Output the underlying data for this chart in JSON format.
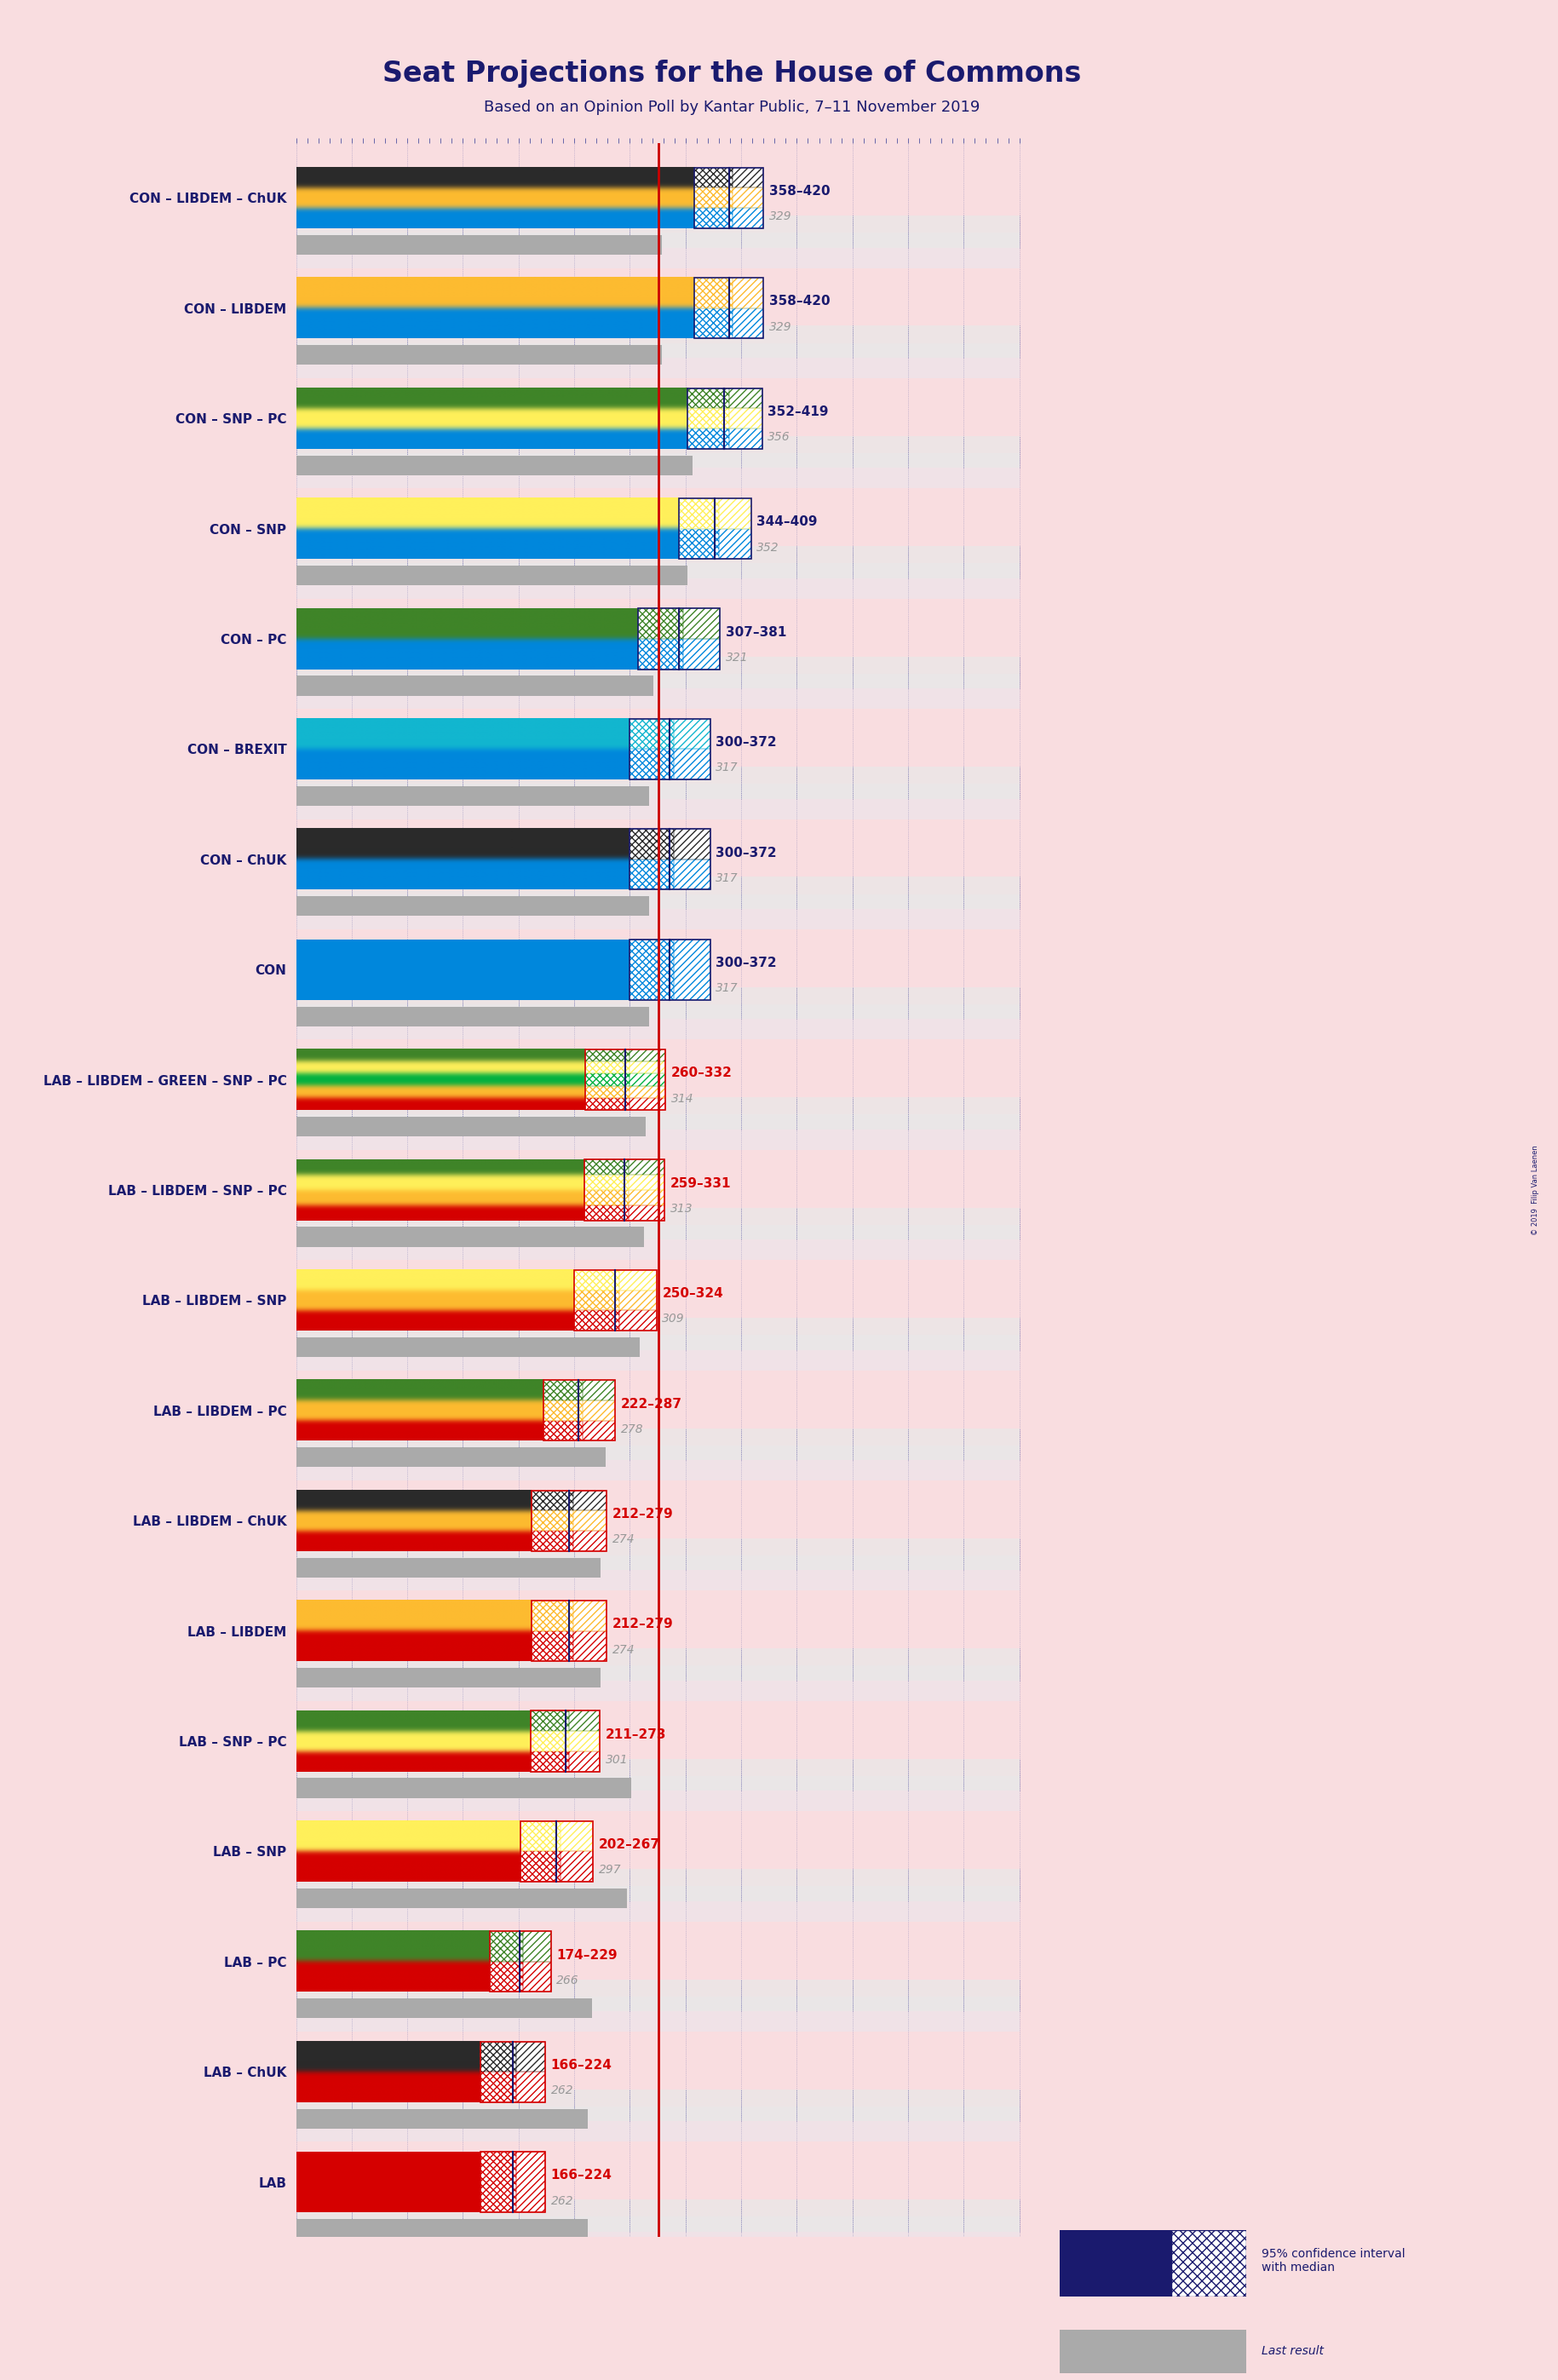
{
  "title": "Seat Projections for the House of Commons",
  "subtitle": "Based on an Opinion Poll by Kantar Public, 7–11 November 2019",
  "background_color": "#f9dde0",
  "title_color": "#1a1a6e",
  "subtitle_color": "#1a1a6e",
  "majority_line": 326,
  "coalitions": [
    {
      "label": "CON – LIBDEM – ChUK",
      "ci_low": 358,
      "ci_high": 420,
      "median": 389,
      "last_result": 329,
      "parties": [
        "CON",
        "LIBDEM",
        "ChUK"
      ],
      "range_color": "#1a1a6e"
    },
    {
      "label": "CON – LIBDEM",
      "ci_low": 358,
      "ci_high": 420,
      "median": 389,
      "last_result": 329,
      "parties": [
        "CON",
        "LIBDEM"
      ],
      "range_color": "#1a1a6e"
    },
    {
      "label": "CON – SNP – PC",
      "ci_low": 352,
      "ci_high": 419,
      "median": 385,
      "last_result": 356,
      "parties": [
        "CON",
        "SNP",
        "PC"
      ],
      "range_color": "#1a1a6e"
    },
    {
      "label": "CON – SNP",
      "ci_low": 344,
      "ci_high": 409,
      "median": 376,
      "last_result": 352,
      "parties": [
        "CON",
        "SNP"
      ],
      "range_color": "#1a1a6e"
    },
    {
      "label": "CON – PC",
      "ci_low": 307,
      "ci_high": 381,
      "median": 344,
      "last_result": 321,
      "parties": [
        "CON",
        "PC"
      ],
      "range_color": "#1a1a6e"
    },
    {
      "label": "CON – BREXIT",
      "ci_low": 300,
      "ci_high": 372,
      "median": 336,
      "last_result": 317,
      "parties": [
        "CON",
        "BREXIT"
      ],
      "range_color": "#1a1a6e"
    },
    {
      "label": "CON – ChUK",
      "ci_low": 300,
      "ci_high": 372,
      "median": 336,
      "last_result": 317,
      "parties": [
        "CON",
        "ChUK"
      ],
      "range_color": "#1a1a6e"
    },
    {
      "label": "CON",
      "ci_low": 300,
      "ci_high": 372,
      "median": 336,
      "last_result": 317,
      "parties": [
        "CON"
      ],
      "range_color": "#1a1a6e"
    },
    {
      "label": "LAB – LIBDEM – GREEN – SNP – PC",
      "ci_low": 260,
      "ci_high": 332,
      "median": 296,
      "last_result": 314,
      "parties": [
        "LAB",
        "LIBDEM",
        "GREEN",
        "SNP",
        "PC"
      ],
      "range_color": "#d50000"
    },
    {
      "label": "LAB – LIBDEM – SNP – PC",
      "ci_low": 259,
      "ci_high": 331,
      "median": 295,
      "last_result": 313,
      "parties": [
        "LAB",
        "LIBDEM",
        "SNP",
        "PC"
      ],
      "range_color": "#d50000"
    },
    {
      "label": "LAB – LIBDEM – SNP",
      "ci_low": 250,
      "ci_high": 324,
      "median": 287,
      "last_result": 309,
      "parties": [
        "LAB",
        "LIBDEM",
        "SNP"
      ],
      "range_color": "#d50000"
    },
    {
      "label": "LAB – LIBDEM – PC",
      "ci_low": 222,
      "ci_high": 287,
      "median": 254,
      "last_result": 278,
      "parties": [
        "LAB",
        "LIBDEM",
        "PC"
      ],
      "range_color": "#d50000"
    },
    {
      "label": "LAB – LIBDEM – ChUK",
      "ci_low": 212,
      "ci_high": 279,
      "median": 245,
      "last_result": 274,
      "parties": [
        "LAB",
        "LIBDEM",
        "ChUK"
      ],
      "range_color": "#d50000"
    },
    {
      "label": "LAB – LIBDEM",
      "ci_low": 212,
      "ci_high": 279,
      "median": 245,
      "last_result": 274,
      "parties": [
        "LAB",
        "LIBDEM"
      ],
      "range_color": "#d50000"
    },
    {
      "label": "LAB – SNP – PC",
      "ci_low": 211,
      "ci_high": 273,
      "median": 242,
      "last_result": 301,
      "parties": [
        "LAB",
        "SNP",
        "PC"
      ],
      "range_color": "#d50000"
    },
    {
      "label": "LAB – SNP",
      "ci_low": 202,
      "ci_high": 267,
      "median": 234,
      "last_result": 297,
      "parties": [
        "LAB",
        "SNP"
      ],
      "range_color": "#d50000"
    },
    {
      "label": "LAB – PC",
      "ci_low": 174,
      "ci_high": 229,
      "median": 201,
      "last_result": 266,
      "parties": [
        "LAB",
        "PC"
      ],
      "range_color": "#d50000"
    },
    {
      "label": "LAB – ChUK",
      "ci_low": 166,
      "ci_high": 224,
      "median": 195,
      "last_result": 262,
      "parties": [
        "LAB",
        "ChUK"
      ],
      "range_color": "#d50000"
    },
    {
      "label": "LAB",
      "ci_low": 166,
      "ci_high": 224,
      "median": 195,
      "last_result": 262,
      "parties": [
        "LAB"
      ],
      "range_color": "#d50000"
    }
  ],
  "party_colors": {
    "CON": "#0087dc",
    "LIBDEM": "#fdbb30",
    "ChUK": "#2a2a2a",
    "SNP": "#fff05a",
    "PC": "#3f8428",
    "BREXIT": "#12b6cf",
    "GREEN": "#00b140",
    "LAB": "#d50000"
  },
  "copyright": "© 2019  Filip Van Laenen"
}
